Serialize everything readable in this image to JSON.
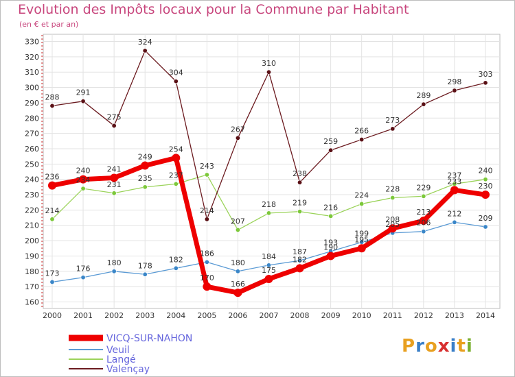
{
  "title": "Evolution des Impôts locaux pour la Commune par Habitant",
  "subtitle": "(en € et par an)",
  "logo": {
    "text": "Proxiti",
    "letters": [
      "P",
      "r",
      "o",
      "x",
      "i",
      "t",
      "i"
    ],
    "colors": [
      "#e8a020",
      "#3a7fc8",
      "#e8a020",
      "#d83030",
      "#3a7fc8",
      "#e8a020",
      "#7ab030"
    ]
  },
  "chart_data": {
    "type": "line",
    "title": "Evolution des Impôts locaux pour la Commune par Habitant",
    "subtitle": "(en € et par an)",
    "xlabel": "",
    "ylabel": "",
    "ylim": [
      160,
      330
    ],
    "y_ticks": [
      160,
      170,
      180,
      190,
      200,
      210,
      220,
      230,
      240,
      250,
      260,
      270,
      280,
      290,
      300,
      310,
      320,
      330
    ],
    "x": [
      "2000",
      "2001",
      "2002",
      "2003",
      "2004",
      "2005",
      "2006",
      "2007",
      "2008",
      "2009",
      "2010",
      "2011",
      "2012",
      "2013",
      "2014"
    ],
    "grid": true,
    "legend_position": "bottom-left",
    "series": [
      {
        "name": "VICQ-SUR-NAHON",
        "color": "#ee0000",
        "values": [
          236,
          240,
          241,
          249,
          254,
          170,
          166,
          175,
          182,
          190,
          195,
          208,
          213,
          233,
          230
        ]
      },
      {
        "name": "Veuil",
        "color": "#5b9bd5",
        "values": [
          173,
          176,
          180,
          178,
          182,
          186,
          180,
          184,
          187,
          193,
          199,
          205,
          206,
          212,
          209
        ]
      },
      {
        "name": "Langé",
        "color": "#9bd35a",
        "values": [
          214,
          234,
          231,
          235,
          237,
          243,
          207,
          218,
          219,
          216,
          224,
          228,
          229,
          237,
          240
        ]
      },
      {
        "name": "Valençay",
        "color": "#6b1a1f",
        "values": [
          288,
          291,
          275,
          324,
          304,
          214,
          267,
          310,
          238,
          259,
          266,
          273,
          289,
          298,
          303
        ]
      }
    ]
  }
}
